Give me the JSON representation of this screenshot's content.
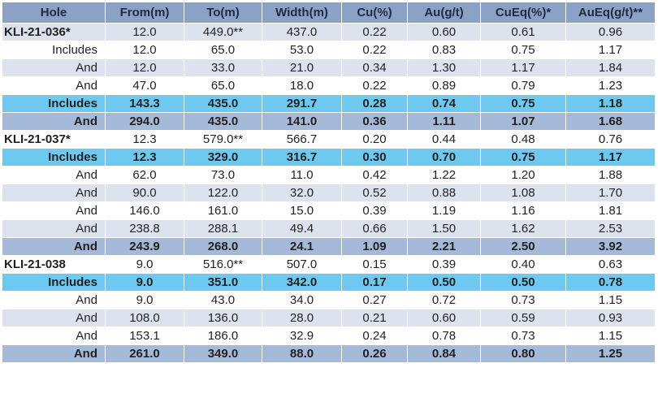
{
  "table": {
    "columns": [
      "Hole",
      "From(m)",
      "To(m)",
      "Width(m)",
      "Cu(%)",
      "Au(g/t)",
      "CuEq(%)*",
      "AuEq(g/t)**"
    ],
    "rows": [
      {
        "style": "light",
        "cells": [
          "KLI-21-036*",
          "12.0",
          "449.0**",
          "437.0",
          "0.22",
          "0.60",
          "0.61",
          "0.96"
        ]
      },
      {
        "style": "white",
        "cells": [
          "Includes",
          "12.0",
          "65.0",
          "53.0",
          "0.22",
          "0.83",
          "0.75",
          "1.17"
        ]
      },
      {
        "style": "light",
        "cells": [
          "And",
          "12.0",
          "33.0",
          "21.0",
          "0.34",
          "1.30",
          "1.17",
          "1.84"
        ]
      },
      {
        "style": "white",
        "cells": [
          "And",
          "47.0",
          "65.0",
          "18.0",
          "0.22",
          "0.89",
          "0.79",
          "1.23"
        ]
      },
      {
        "style": "cyan",
        "cells": [
          "Includes",
          "143.3",
          "435.0",
          "291.7",
          "0.28",
          "0.74",
          "0.75",
          "1.18"
        ]
      },
      {
        "style": "blue",
        "cells": [
          "And",
          "294.0",
          "435.0",
          "141.0",
          "0.36",
          "1.11",
          "1.07",
          "1.68"
        ]
      },
      {
        "style": "white",
        "cells": [
          "KLI-21-037*",
          "12.3",
          "579.0**",
          "566.7",
          "0.20",
          "0.44",
          "0.48",
          "0.76"
        ]
      },
      {
        "style": "cyan",
        "cells": [
          "Includes",
          "12.3",
          "329.0",
          "316.7",
          "0.30",
          "0.70",
          "0.75",
          "1.17"
        ]
      },
      {
        "style": "white",
        "cells": [
          "And",
          "62.0",
          "73.0",
          "11.0",
          "0.42",
          "1.22",
          "1.20",
          "1.88"
        ]
      },
      {
        "style": "light",
        "cells": [
          "And",
          "90.0",
          "122.0",
          "32.0",
          "0.52",
          "0.88",
          "1.08",
          "1.70"
        ]
      },
      {
        "style": "white",
        "cells": [
          "And",
          "146.0",
          "161.0",
          "15.0",
          "0.39",
          "1.19",
          "1.16",
          "1.81"
        ]
      },
      {
        "style": "light",
        "cells": [
          "And",
          "238.8",
          "288.1",
          "49.4",
          "0.66",
          "1.50",
          "1.62",
          "2.53"
        ]
      },
      {
        "style": "blue",
        "cells": [
          "And",
          "243.9",
          "268.0",
          "24.1",
          "1.09",
          "2.21",
          "2.50",
          "3.92"
        ]
      },
      {
        "style": "white",
        "cells": [
          "KLI-21-038",
          "9.0",
          "516.0**",
          "507.0",
          "0.15",
          "0.39",
          "0.40",
          "0.63"
        ]
      },
      {
        "style": "cyan",
        "cells": [
          "Includes",
          "9.0",
          "351.0",
          "342.0",
          "0.17",
          "0.50",
          "0.50",
          "0.78"
        ]
      },
      {
        "style": "white",
        "cells": [
          "And",
          "9.0",
          "43.0",
          "34.0",
          "0.27",
          "0.72",
          "0.73",
          "1.15"
        ]
      },
      {
        "style": "light",
        "cells": [
          "And",
          "108.0",
          "136.0",
          "28.0",
          "0.21",
          "0.60",
          "0.59",
          "0.93"
        ]
      },
      {
        "style": "white",
        "cells": [
          "And",
          "153.1",
          "186.0",
          "32.9",
          "0.24",
          "0.78",
          "0.73",
          "1.15"
        ]
      },
      {
        "style": "blue",
        "cells": [
          "And",
          "261.0",
          "349.0",
          "88.0",
          "0.26",
          "0.84",
          "0.80",
          "1.25"
        ]
      }
    ]
  }
}
